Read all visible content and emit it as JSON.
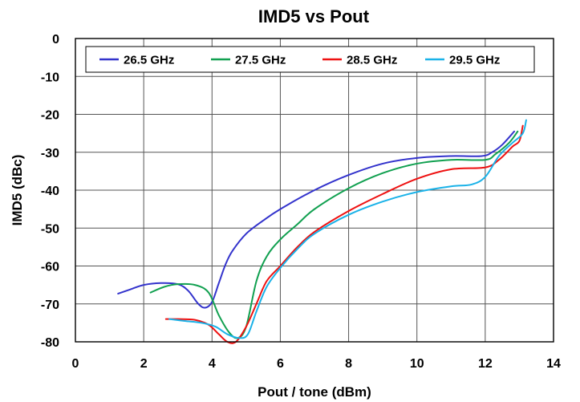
{
  "chart_data": {
    "type": "line",
    "title": "IMD5 vs Pout",
    "xlabel": "Pout / tone (dBm)",
    "ylabel": "IMD5 (dBc)",
    "xlim": [
      0,
      14
    ],
    "ylim": [
      -80,
      0
    ],
    "x_ticks": [
      0,
      2,
      4,
      6,
      8,
      10,
      12,
      14
    ],
    "y_ticks": [
      0,
      -10,
      -20,
      -30,
      -40,
      -50,
      -60,
      -70,
      -80
    ],
    "x_tick_labels": [
      "0",
      "2",
      "4",
      "6",
      "8",
      "10",
      "12",
      "14"
    ],
    "y_tick_labels": [
      "0",
      "-10",
      "-20",
      "-30",
      "-40",
      "-50",
      "-60",
      "-70",
      "-80"
    ],
    "grid": true,
    "legend_position": "top",
    "series": [
      {
        "name": "26.5 GHz",
        "color": "#3333cc",
        "x": [
          1.25,
          1.6,
          2.0,
          2.5,
          3.0,
          3.3,
          3.6,
          3.8,
          4.0,
          4.2,
          4.4,
          4.6,
          5.0,
          5.5,
          6.0,
          7.0,
          8.0,
          9.0,
          10.0,
          11.0,
          11.9,
          12.2,
          12.5,
          12.85
        ],
        "y": [
          -67.3,
          -66.2,
          -65.0,
          -64.5,
          -64.8,
          -66.5,
          -70.0,
          -71.0,
          -69.5,
          -64.5,
          -59.5,
          -56.0,
          -51.5,
          -48.0,
          -45.0,
          -40.0,
          -36.0,
          -33.0,
          -31.5,
          -31.0,
          -31.0,
          -30.0,
          -28.0,
          -24.5
        ]
      },
      {
        "name": "27.5 GHz",
        "color": "#11a050",
        "x": [
          2.2,
          2.6,
          3.0,
          3.5,
          3.9,
          4.2,
          4.5,
          4.75,
          5.0,
          5.3,
          5.6,
          6.0,
          6.5,
          7.0,
          8.0,
          9.0,
          10.0,
          11.0,
          12.0,
          12.3,
          12.7,
          12.95
        ],
        "y": [
          -67.0,
          -65.5,
          -64.8,
          -65.0,
          -67.0,
          -73.0,
          -77.5,
          -79.0,
          -76.0,
          -64.0,
          -57.5,
          -53.0,
          -49.0,
          -45.0,
          -39.5,
          -35.5,
          -33.0,
          -32.0,
          -32.0,
          -30.5,
          -27.5,
          -24.5
        ]
      },
      {
        "name": "28.5 GHz",
        "color": "#ee1111",
        "x": [
          2.65,
          3.0,
          3.5,
          3.9,
          4.2,
          4.45,
          4.7,
          5.0,
          5.3,
          5.6,
          6.0,
          6.5,
          7.0,
          8.0,
          9.0,
          10.0,
          11.0,
          12.0,
          12.4,
          12.8,
          13.0,
          13.1
        ],
        "y": [
          -74.0,
          -74.0,
          -74.2,
          -75.5,
          -78.0,
          -80.0,
          -80.0,
          -76.0,
          -70.0,
          -64.0,
          -60.0,
          -55.0,
          -51.0,
          -45.5,
          -41.0,
          -37.0,
          -34.5,
          -34.0,
          -32.0,
          -28.5,
          -27.0,
          -23.0
        ]
      },
      {
        "name": "29.5 GHz",
        "color": "#1ab2e8",
        "x": [
          2.75,
          3.2,
          3.7,
          4.1,
          4.45,
          4.8,
          5.05,
          5.3,
          5.6,
          6.0,
          6.5,
          7.0,
          8.0,
          9.0,
          10.0,
          11.0,
          11.6,
          12.0,
          12.4,
          12.8,
          13.1,
          13.2
        ],
        "y": [
          -74.0,
          -74.5,
          -75.0,
          -76.0,
          -78.0,
          -79.0,
          -78.0,
          -72.0,
          -65.5,
          -60.5,
          -55.5,
          -51.5,
          -46.5,
          -43.0,
          -40.5,
          -39.0,
          -38.5,
          -36.5,
          -31.0,
          -27.5,
          -25.0,
          -21.5
        ]
      }
    ]
  }
}
